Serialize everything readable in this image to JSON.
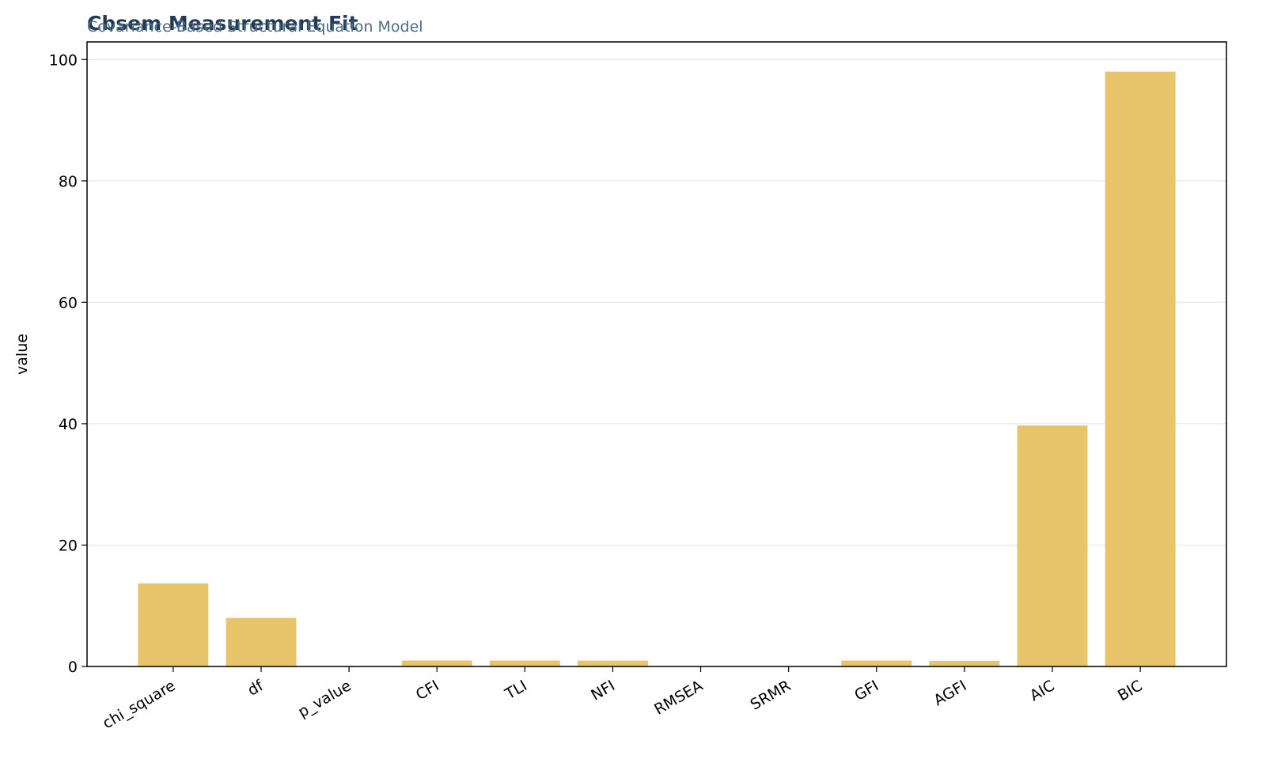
{
  "chart_data": {
    "type": "bar",
    "title": "Cbsem Measurement Fit",
    "subtitle": "Covariance-Based Structural Equation Model",
    "y_label": "value",
    "categories": [
      "chi_square",
      "df",
      "p_value",
      "CFI",
      "TLI",
      "NFI",
      "RMSEA",
      "SRMR",
      "GFI",
      "AGFI",
      "AIC",
      "BIC"
    ],
    "values": [
      13.7,
      8,
      0.06,
      0.98,
      0.97,
      0.96,
      0.04,
      0.03,
      0.97,
      0.93,
      39.7,
      98.0
    ],
    "color": "#e8c46a",
    "ylim": [
      0,
      102.9
    ],
    "yticks": [
      0,
      20,
      40,
      60,
      80,
      100
    ],
    "grid": true
  }
}
